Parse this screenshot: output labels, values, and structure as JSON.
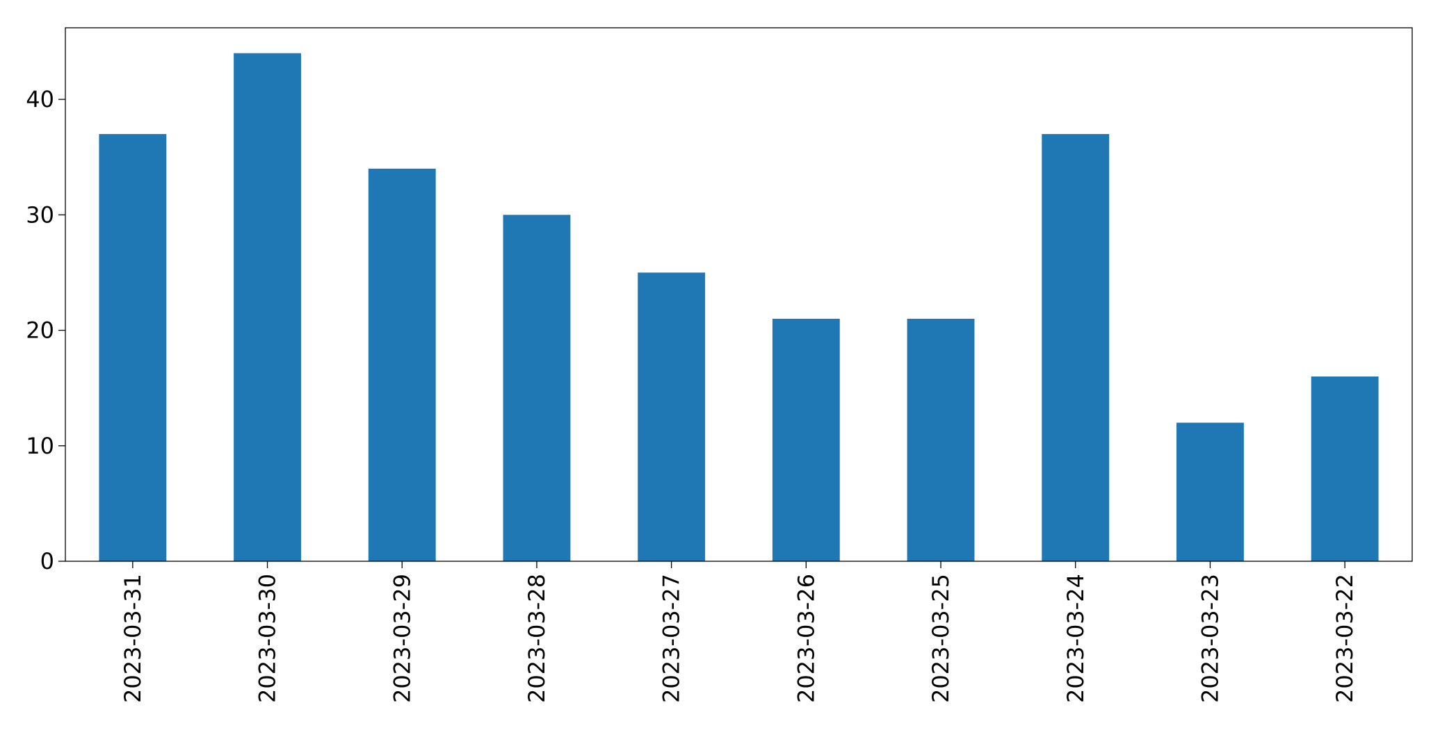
{
  "chart_data": {
    "type": "bar",
    "categories": [
      "2023-03-31",
      "2023-03-30",
      "2023-03-29",
      "2023-03-28",
      "2023-03-27",
      "2023-03-26",
      "2023-03-25",
      "2023-03-24",
      "2023-03-23",
      "2023-03-22"
    ],
    "values": [
      37,
      44,
      34,
      30,
      25,
      21,
      21,
      37,
      12,
      16
    ],
    "color": "#1f77b4",
    "ylim": [
      0,
      46.2
    ],
    "yticks": [
      0,
      10,
      20,
      30,
      40
    ],
    "grid": false
  }
}
